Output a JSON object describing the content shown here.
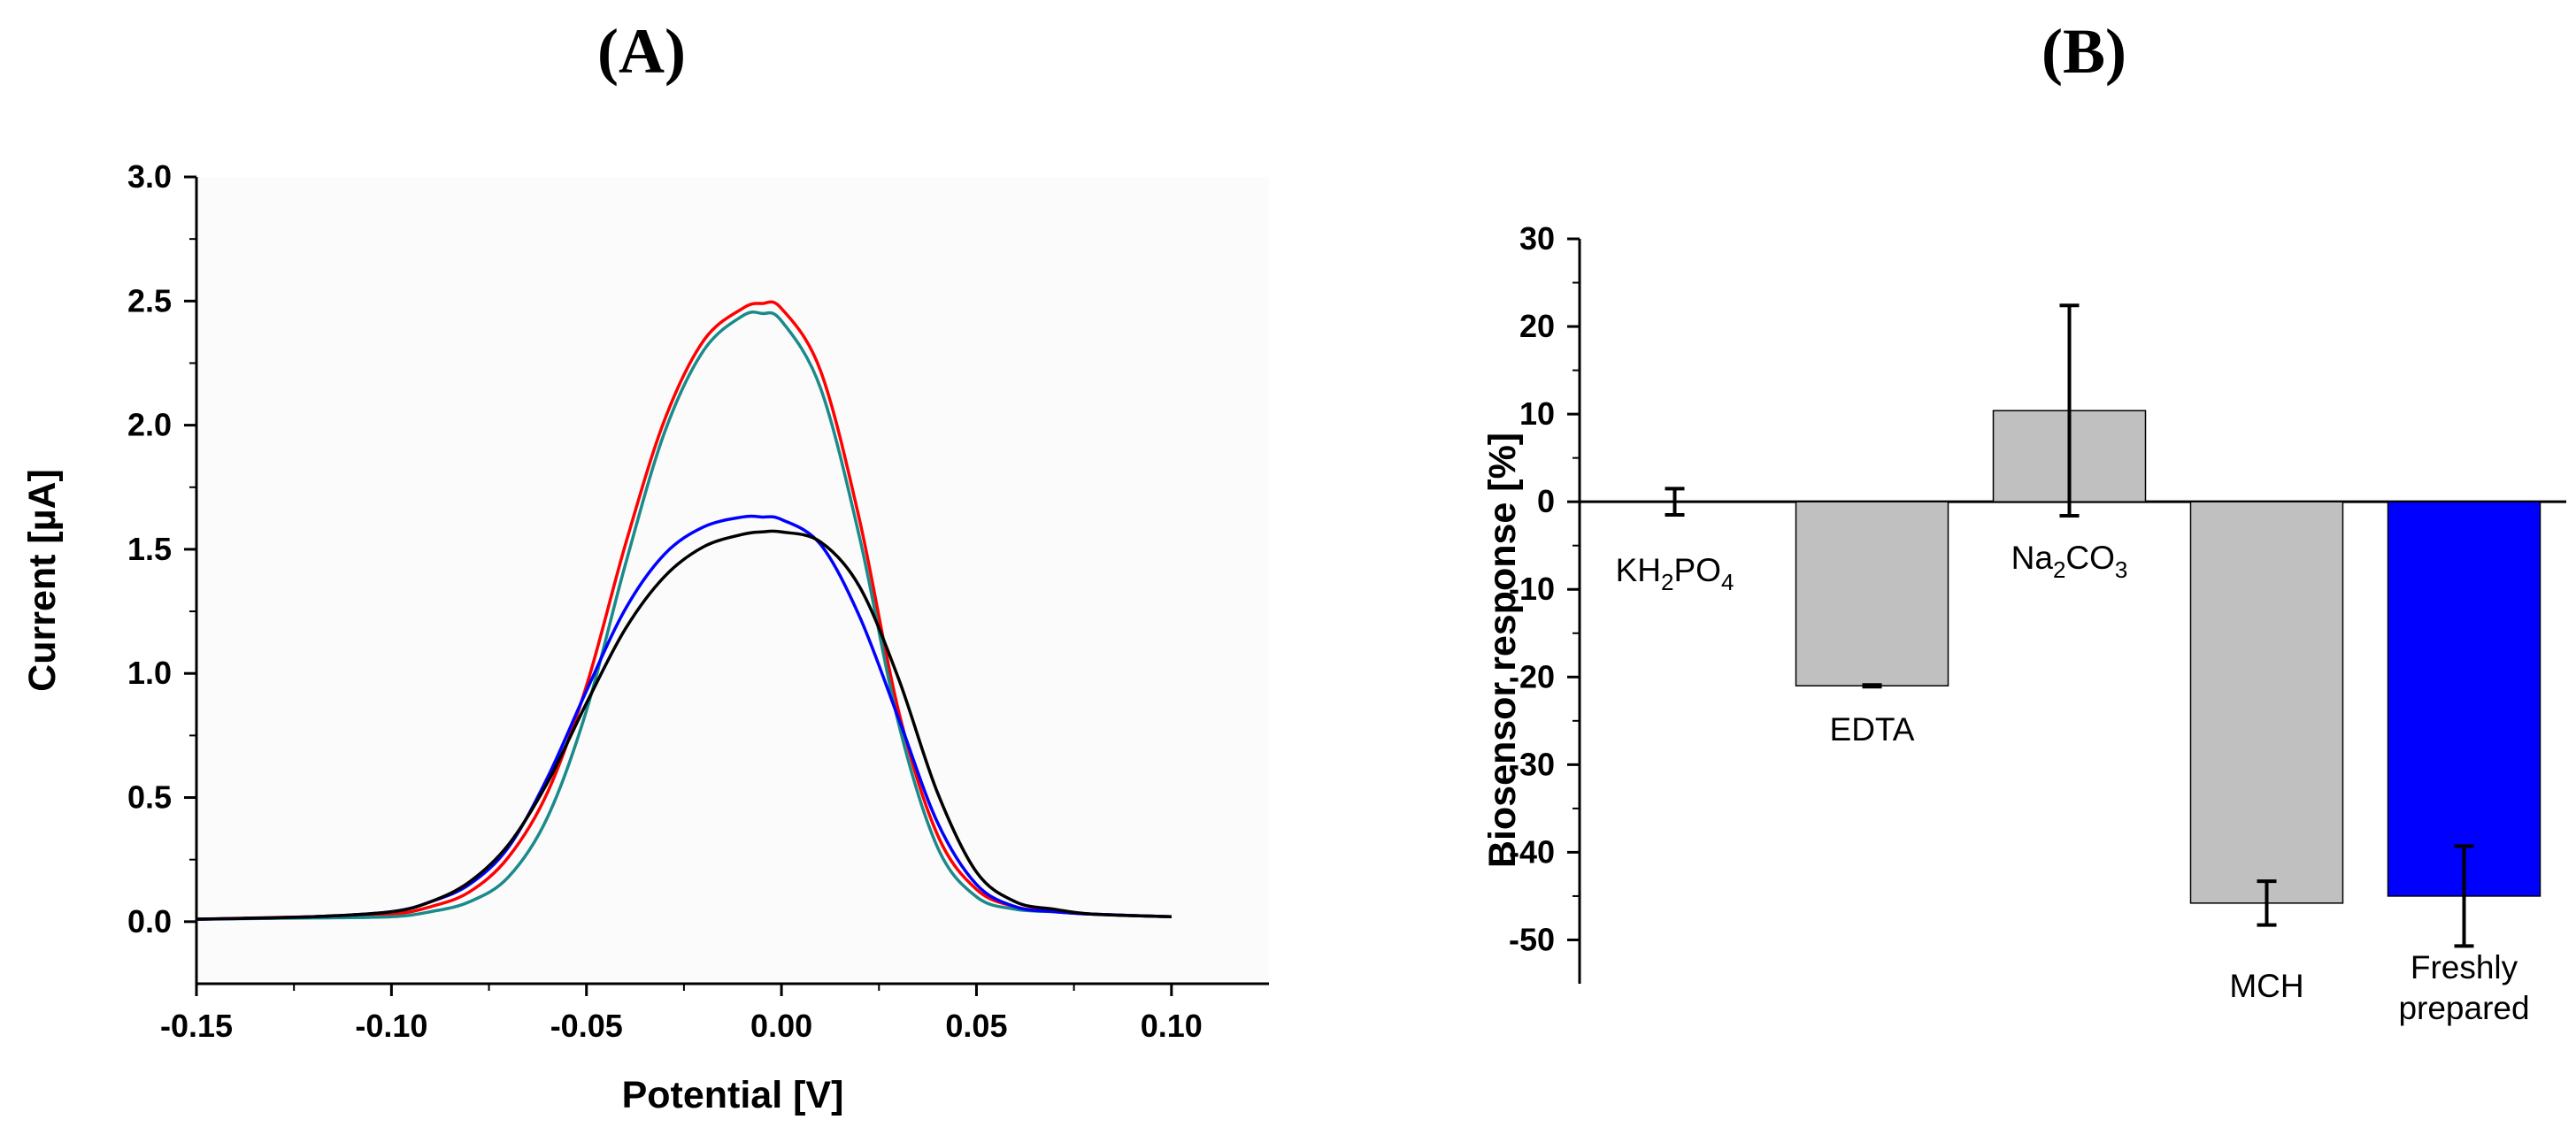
{
  "panels": {
    "A": {
      "label": "(A)"
    },
    "B": {
      "label": "(B)"
    }
  },
  "chart_data": [
    {
      "type": "line",
      "title": "(A)",
      "xlabel": "Potential [V]",
      "ylabel": "Current [µA]",
      "xlim": [
        -0.15,
        0.125
      ],
      "ylim": [
        -0.25,
        3.0
      ],
      "xticks": [
        "-0.15",
        "-0.10",
        "-0.05",
        "0.00",
        "0.05",
        "0.10"
      ],
      "yticks": [
        "0.0",
        "0.5",
        "1.0",
        "1.5",
        "2.0",
        "2.5",
        "3.0"
      ],
      "grid": false,
      "legend": "none",
      "series": [
        {
          "color": "#ff0000",
          "x": [
            -0.15,
            -0.12,
            -0.1,
            -0.09,
            -0.08,
            -0.07,
            -0.06,
            -0.05,
            -0.04,
            -0.03,
            -0.02,
            -0.01,
            -0.005,
            0.0,
            0.01,
            0.02,
            0.03,
            0.04,
            0.05,
            0.06,
            0.07,
            0.08,
            0.1
          ],
          "y": [
            0.01,
            0.02,
            0.03,
            0.06,
            0.12,
            0.26,
            0.52,
            0.95,
            1.52,
            2.02,
            2.34,
            2.47,
            2.49,
            2.47,
            2.22,
            1.62,
            0.85,
            0.35,
            0.13,
            0.06,
            0.04,
            0.03,
            0.02
          ]
        },
        {
          "color": "#1a8a8a",
          "x": [
            -0.15,
            -0.12,
            -0.1,
            -0.09,
            -0.08,
            -0.07,
            -0.06,
            -0.05,
            -0.04,
            -0.03,
            -0.02,
            -0.01,
            -0.005,
            0.0,
            0.01,
            0.02,
            0.03,
            0.04,
            0.05,
            0.06,
            0.07,
            0.08,
            0.1
          ],
          "y": [
            0.01,
            0.015,
            0.02,
            0.04,
            0.08,
            0.18,
            0.42,
            0.85,
            1.44,
            1.97,
            2.3,
            2.44,
            2.45,
            2.42,
            2.15,
            1.55,
            0.8,
            0.3,
            0.1,
            0.05,
            0.04,
            0.03,
            0.02
          ]
        },
        {
          "color": "#0000ff",
          "x": [
            -0.15,
            -0.12,
            -0.1,
            -0.09,
            -0.08,
            -0.07,
            -0.06,
            -0.05,
            -0.04,
            -0.03,
            -0.02,
            -0.01,
            -0.005,
            0.0,
            0.01,
            0.02,
            0.03,
            0.04,
            0.05,
            0.06,
            0.07,
            0.08,
            0.1
          ],
          "y": [
            0.01,
            0.02,
            0.04,
            0.08,
            0.15,
            0.3,
            0.58,
            0.93,
            1.26,
            1.48,
            1.59,
            1.63,
            1.63,
            1.62,
            1.52,
            1.23,
            0.82,
            0.4,
            0.15,
            0.06,
            0.04,
            0.03,
            0.02
          ]
        },
        {
          "color": "#000000",
          "x": [
            -0.15,
            -0.12,
            -0.1,
            -0.09,
            -0.08,
            -0.07,
            -0.06,
            -0.05,
            -0.04,
            -0.03,
            -0.02,
            -0.01,
            -0.005,
            0.0,
            0.01,
            0.02,
            0.03,
            0.04,
            0.05,
            0.06,
            0.07,
            0.08,
            0.1
          ],
          "y": [
            0.01,
            0.02,
            0.04,
            0.08,
            0.16,
            0.31,
            0.56,
            0.88,
            1.18,
            1.39,
            1.51,
            1.56,
            1.57,
            1.57,
            1.53,
            1.35,
            0.98,
            0.52,
            0.2,
            0.08,
            0.05,
            0.03,
            0.02
          ]
        }
      ]
    },
    {
      "type": "bar",
      "title": "(B)",
      "xlabel": "",
      "ylabel": "Biosensor response [%]",
      "ylim": [
        -55,
        30
      ],
      "yticks": [
        "30",
        "20",
        "10",
        "0",
        "-10",
        "-20",
        "-30",
        "-40",
        "-50"
      ],
      "grid": false,
      "legend": "none",
      "categories": [
        {
          "main": "KH",
          "sub1": "2",
          "mid": "PO",
          "sub2": "4",
          "full": "KH2PO4"
        },
        {
          "main": "EDTA",
          "sub1": "",
          "mid": "",
          "sub2": "",
          "full": "EDTA"
        },
        {
          "main": "Na",
          "sub1": "2",
          "mid": "CO",
          "sub2": "3",
          "full": "Na2CO3"
        },
        {
          "main": "MCH",
          "sub1": "",
          "mid": "",
          "sub2": "",
          "full": "MCH"
        },
        {
          "main": "Freshly",
          "line2": "prepared",
          "full": "Freshly prepared"
        }
      ],
      "values": [
        0,
        -21,
        10.4,
        -45.8,
        -45
      ],
      "errors": [
        1.5,
        0.1,
        12,
        2.5,
        5.7
      ],
      "colors": [
        "#c0c0c0",
        "#c0c0c0",
        "#c0c0c0",
        "#c0c0c0",
        "#0000ff"
      ]
    }
  ]
}
